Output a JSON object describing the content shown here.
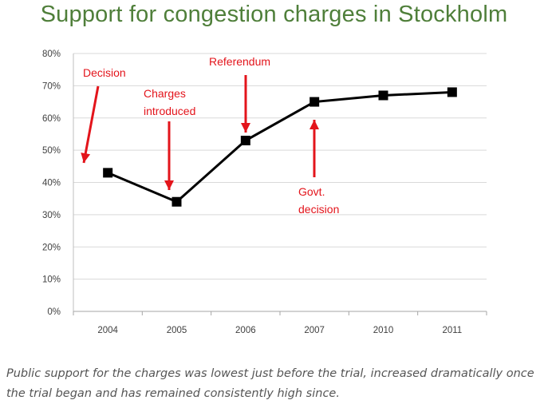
{
  "title": "Support for congestion charges in Stockholm",
  "caption": "Public support for the charges was lowest just before the trial, increased dramatically once the trial began and has remained consistently high since.",
  "colors": {
    "title": "#4f7f3a",
    "line": "#000000",
    "annotation": "#e3141b",
    "grid": "#d9d9d9",
    "axis_text": "#404040"
  },
  "chart_data": {
    "type": "line",
    "categories": [
      "2004",
      "2005",
      "2006",
      "2007",
      "2010",
      "2011"
    ],
    "series": [
      {
        "values": [
          43,
          34,
          53,
          65,
          67,
          68
        ],
        "marker": "square"
      }
    ],
    "y_ticks": [
      "0%",
      "10%",
      "20%",
      "30%",
      "40%",
      "50%",
      "60%",
      "70%",
      "80%"
    ],
    "ylim": [
      0,
      80
    ],
    "ylabel": "",
    "xlabel": "",
    "grid": true,
    "annotations": [
      {
        "lines": [
          "Decision"
        ],
        "category": "2004",
        "arrow_to": 44,
        "direction": "down"
      },
      {
        "lines": [
          "Charges",
          "introduced"
        ],
        "category": "2005",
        "arrow_to": 37,
        "direction": "down"
      },
      {
        "lines": [
          "Referendum"
        ],
        "category": "2006",
        "arrow_to": 56,
        "direction": "down"
      },
      {
        "lines": [
          "Govt.",
          "decision"
        ],
        "category": "2007",
        "arrow_to": 61,
        "direction": "up"
      }
    ]
  }
}
